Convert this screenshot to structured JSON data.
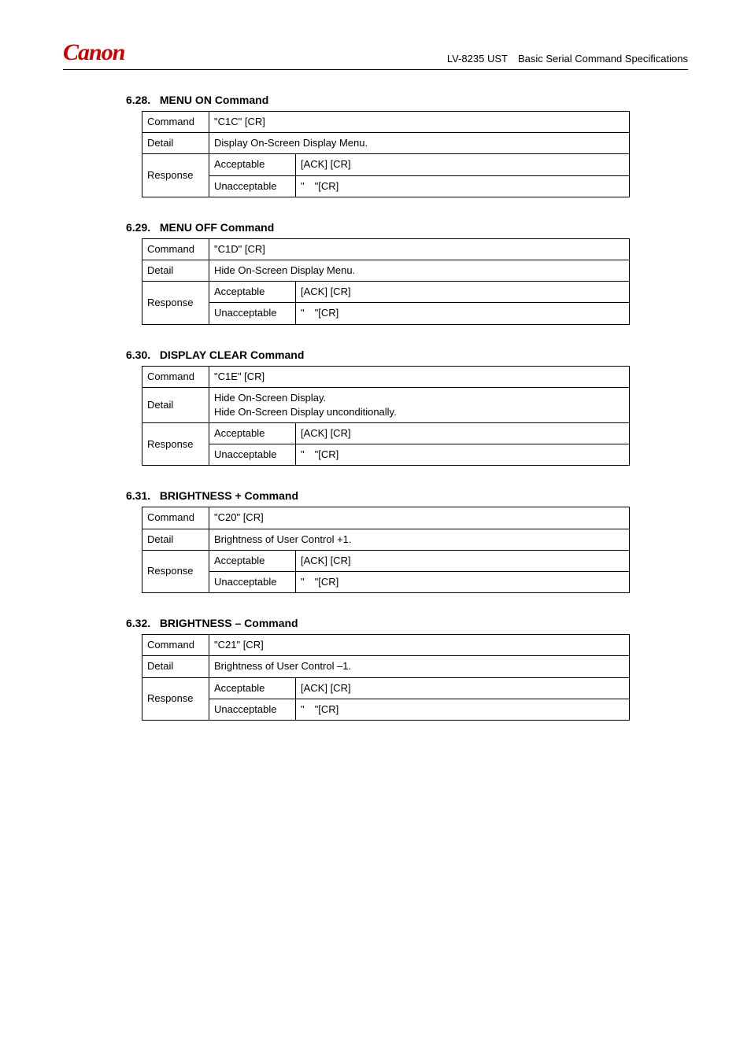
{
  "header": {
    "logo_text": "Canon",
    "doc_title": "LV-8235 UST Basic Serial Command Specifications"
  },
  "sections": [
    {
      "number": "6.28.",
      "title": "MENU ON Command",
      "command": "\"C1C\" [CR]",
      "detail": "Display On-Screen Display Menu.",
      "acceptable": "[ACK] [CR]",
      "unacceptable": "\" \"[CR]"
    },
    {
      "number": "6.29.",
      "title": "MENU OFF Command",
      "command": "\"C1D\" [CR]",
      "detail": "Hide On-Screen Display Menu.",
      "acceptable": "[ACK] [CR]",
      "unacceptable": "\" \"[CR]"
    },
    {
      "number": "6.30.",
      "title": "DISPLAY CLEAR Command",
      "command": "\"C1E\" [CR]",
      "detail": "Hide On-Screen Display.\nHide On-Screen Display unconditionally.",
      "acceptable": "[ACK] [CR]",
      "unacceptable": "\" \"[CR]"
    },
    {
      "number": "6.31.",
      "title": "BRIGHTNESS + Command",
      "command": "\"C20\" [CR]",
      "detail": "Brightness of User Control +1.",
      "acceptable": "[ACK] [CR]",
      "unacceptable": "\" \"[CR]"
    },
    {
      "number": "6.32.",
      "title": "BRIGHTNESS – Command",
      "command": "\"C21\" [CR]",
      "detail": "Brightness of User Control –1.",
      "acceptable": "[ACK] [CR]",
      "unacceptable": "\" \"[CR]"
    }
  ],
  "labels": {
    "command": "Command",
    "detail": "Detail",
    "response": "Response",
    "acceptable": "Acceptable",
    "unacceptable": "Unacceptable"
  }
}
